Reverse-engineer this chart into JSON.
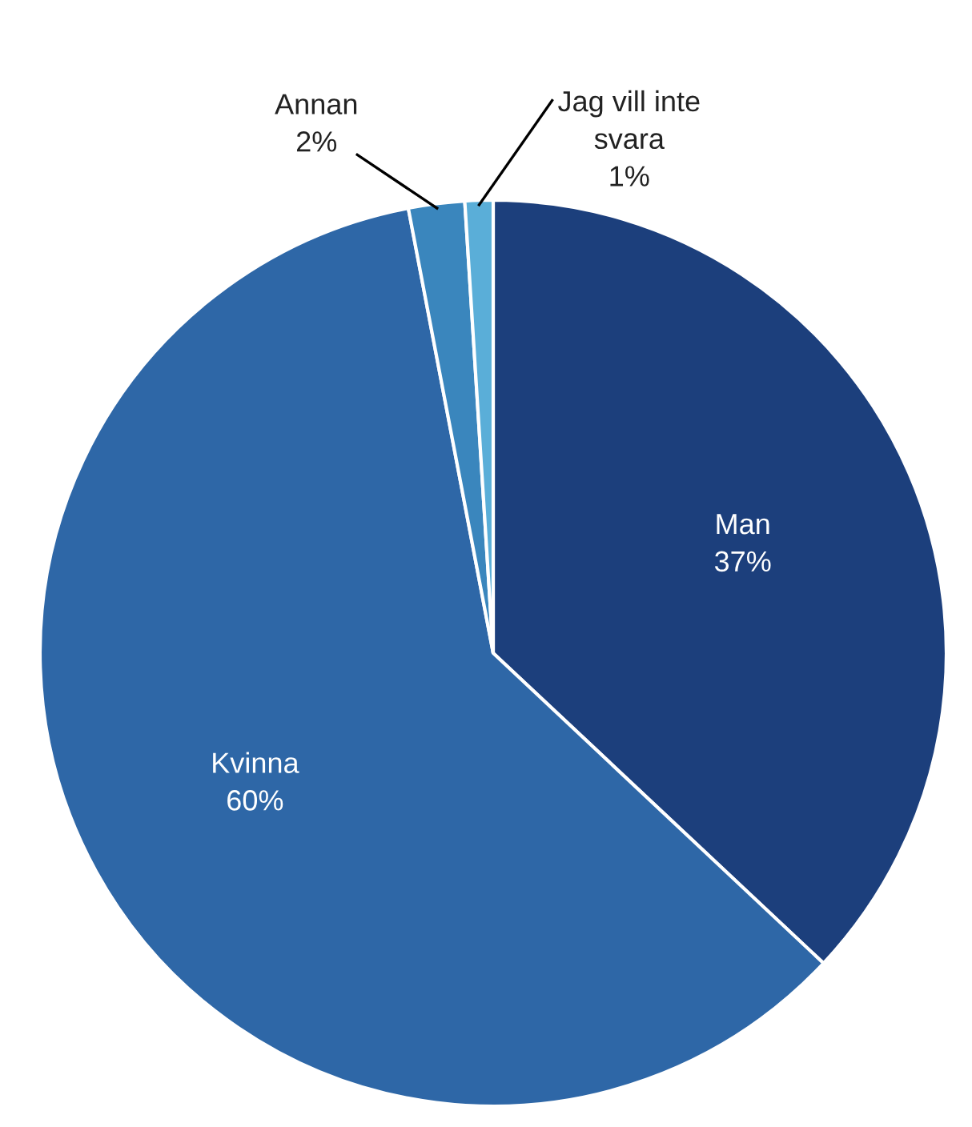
{
  "chart_data": {
    "type": "pie",
    "categories": [
      "Man",
      "Kvinna",
      "Annan",
      "Jag vill inte svara"
    ],
    "values": [
      37,
      60,
      2,
      1
    ],
    "value_labels": [
      "37%",
      "60%",
      "2%",
      "1%"
    ],
    "colors": [
      "#1c3f7c",
      "#2e67a7",
      "#3a86bd",
      "#5aaed8"
    ],
    "legend": false
  }
}
